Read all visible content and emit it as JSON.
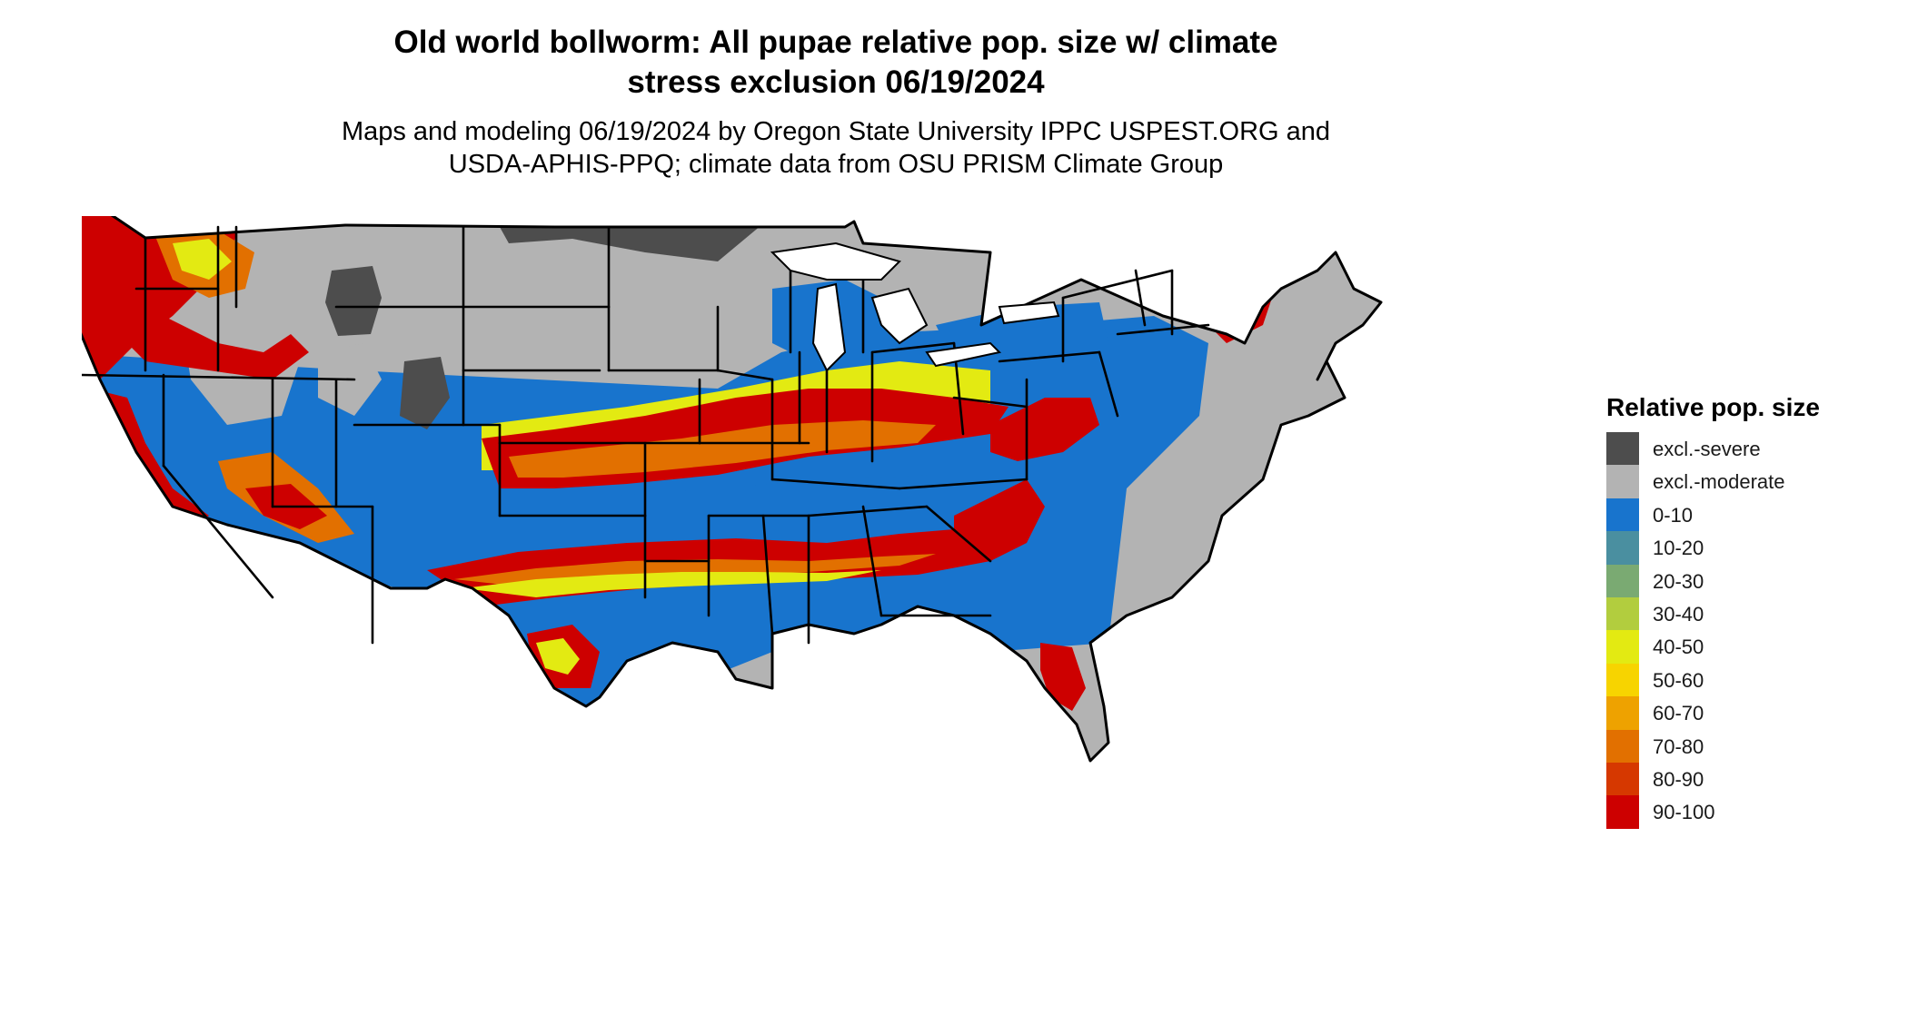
{
  "title": {
    "line1": "Old world bollworm: All pupae relative pop. size w/ climate",
    "line2": "stress exclusion 06/19/2024"
  },
  "subtitle": {
    "line1": "Maps and modeling 06/19/2024 by Oregon State University IPPC USPEST.ORG and",
    "line2": "USDA-APHIS-PPQ; climate data from OSU PRISM Climate Group"
  },
  "legend": {
    "title": "Relative pop. size",
    "items": [
      {
        "label": "excl.-severe",
        "color": "#4d4d4d"
      },
      {
        "label": "excl.-moderate",
        "color": "#b3b3b3"
      },
      {
        "label": "0-10",
        "color": "#1874cd"
      },
      {
        "label": "10-20",
        "color": "#4a8fa0"
      },
      {
        "label": "20-30",
        "color": "#7aaa72"
      },
      {
        "label": "30-40",
        "color": "#b2cd3e"
      },
      {
        "label": "40-50",
        "color": "#e3ea12"
      },
      {
        "label": "50-60",
        "color": "#f7d400"
      },
      {
        "label": "60-70",
        "color": "#eea200"
      },
      {
        "label": "70-80",
        "color": "#e27000"
      },
      {
        "label": "80-90",
        "color": "#d63800"
      },
      {
        "label": "90-100",
        "color": "#cd0000"
      }
    ]
  },
  "map": {
    "colors": {
      "severe": "#4d4d4d",
      "moderate": "#b3b3b3",
      "low": "#1874cd",
      "teal": "#4a8fa0",
      "green": "#7aaa72",
      "lime": "#b2cd3e",
      "yellow": "#e3ea12",
      "gold": "#f7d400",
      "orange": "#eea200",
      "darkorange": "#e27000",
      "redorange": "#d63800",
      "red": "#cd0000",
      "border": "#000000",
      "water": "#ffffff"
    }
  }
}
